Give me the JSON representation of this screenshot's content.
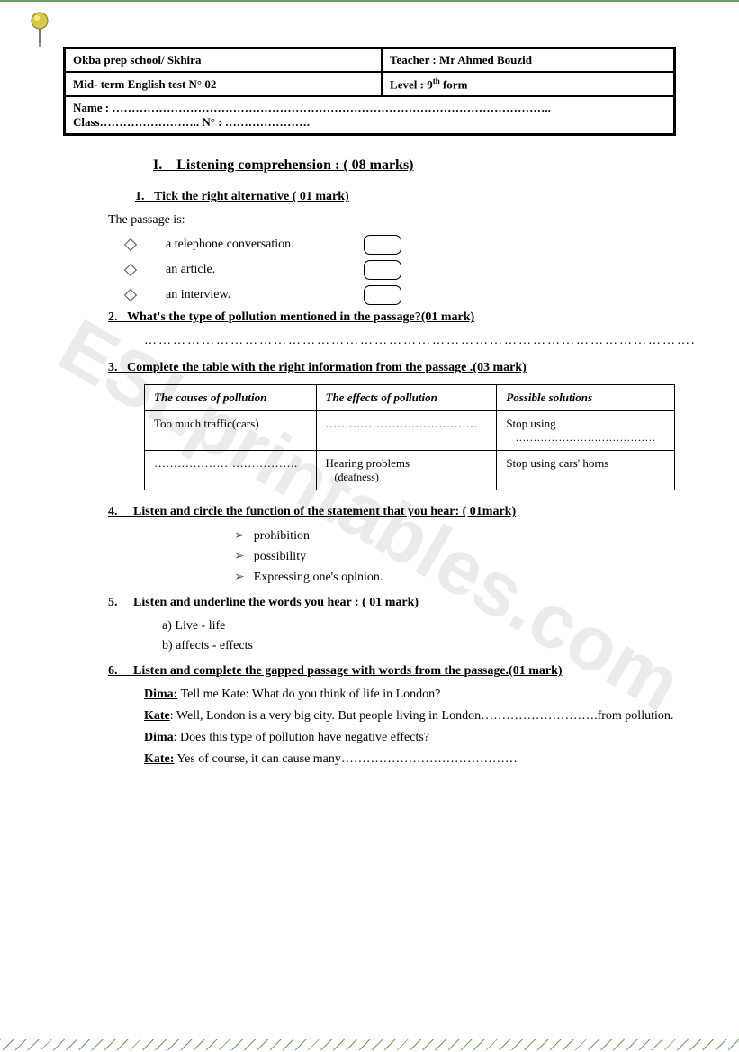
{
  "watermark": "ESLprintables.com",
  "header": {
    "school": "Okba prep school/ Skhira",
    "teacher_label": "Teacher :",
    "teacher_name": "Mr Ahmed Bouzid",
    "test": "Mid- term English test N° 02",
    "level_label": "Level :",
    "level_value": "9",
    "level_suffix": "th",
    "level_after": " form",
    "name_label": "Name :",
    "name_dots": " …………………………………………………………………………………………………..",
    "class_label": "Class",
    "class_dots": "……………………..",
    "no_label": "N° :",
    "no_dots": " …………………."
  },
  "section": {
    "roman": "I.",
    "title": "Listening comprehension : ( 08 marks)"
  },
  "q1": {
    "num": "1.",
    "title": "Tick the right alternative ( 01 mark)",
    "intro": "The passage is:",
    "options": [
      "a telephone conversation.",
      "an article.",
      "an interview."
    ]
  },
  "q2": {
    "num": "2.",
    "title": "What's the type of pollution mentioned in the passage?(01 mark)",
    "dots": "……………………………………………………………………………………………………."
  },
  "q3": {
    "num": "3.",
    "title": "Complete  the table with the right information from the passage .(03 mark)",
    "columns": [
      "The causes of pollution",
      "The effects of pollution",
      "Possible solutions"
    ],
    "rows": [
      [
        "Too much traffic(cars)",
        "…………………………………",
        "Stop using\n…………………………………"
      ],
      [
        "……………………………….",
        "Hearing problems\n(deafness)",
        "Stop using cars' horns"
      ]
    ]
  },
  "q4": {
    "num": "4.",
    "title": "Listen and circle the function of the statement that you hear: ( 01mark)",
    "options": [
      "prohibition",
      "possibility",
      "Expressing one's opinion."
    ]
  },
  "q5": {
    "num": "5.",
    "title": "Listen and underline the words you hear : ( 01 mark)",
    "items": [
      {
        "letter": "a)",
        "text": "Live    -   life"
      },
      {
        "letter": "b)",
        "text": "affects   -   effects"
      }
    ]
  },
  "q6": {
    "num": "6.",
    "title": "Listen and complete the gapped passage with words from the passage.(01 mark)",
    "dialog": [
      {
        "speaker": "Dima:",
        "text": " Tell me Kate: What do you think of life in London?"
      },
      {
        "speaker": "Kate",
        "text": ": Well, London is a very big city. But  people living in London……………………….from pollution."
      },
      {
        "speaker": "Dima",
        "text": ": Does this type of pollution have negative effects?"
      },
      {
        "speaker": "Kate:",
        "text": " Yes of course, it can cause many……………………………………"
      }
    ]
  }
}
